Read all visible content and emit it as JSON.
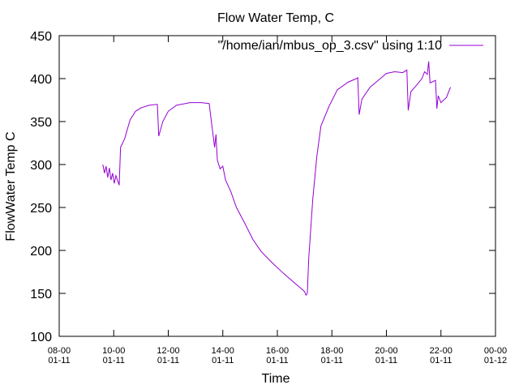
{
  "chart_data": {
    "type": "line",
    "title": "Flow Water Temp, C",
    "xlabel": "Time",
    "ylabel": "FlowWater Temp C",
    "x": [
      9.6,
      9.66,
      9.72,
      9.78,
      9.84,
      9.9,
      9.96,
      10.02,
      10.08,
      10.2,
      10.25,
      10.4,
      10.6,
      10.8,
      11.0,
      11.3,
      11.6,
      11.65,
      11.8,
      12.0,
      12.3,
      12.8,
      13.2,
      13.5,
      13.6,
      13.7,
      13.75,
      13.8,
      13.9,
      14.0,
      14.1,
      14.3,
      14.5,
      14.8,
      15.1,
      15.4,
      15.8,
      16.2,
      16.6,
      16.9,
      17.0,
      17.05,
      17.1,
      17.15,
      17.3,
      17.45,
      17.6,
      17.9,
      18.2,
      18.6,
      18.9,
      18.95,
      19.0,
      19.1,
      19.4,
      19.7,
      20.0,
      20.3,
      20.6,
      20.75,
      20.8,
      20.9,
      21.1,
      21.3,
      21.4,
      21.5,
      21.55,
      21.6,
      21.8,
      21.85,
      21.9,
      22.0,
      22.2,
      22.35
    ],
    "series": [
      {
        "name": "\"/home/ian/mbus_op_3.csv\" using 1:10",
        "color": "#9400d3",
        "values": [
          300,
          290,
          298,
          285,
          296,
          282,
          290,
          278,
          287,
          276,
          320,
          330,
          352,
          362,
          366,
          369,
          370,
          333,
          350,
          362,
          369,
          372,
          372,
          371,
          345,
          320,
          335,
          305,
          295,
          298,
          282,
          268,
          250,
          232,
          213,
          199,
          186,
          174,
          163,
          155,
          152,
          148,
          150,
          190,
          260,
          310,
          345,
          368,
          387,
          396,
          400,
          401,
          358,
          376,
          390,
          398,
          406,
          408,
          407,
          410,
          363,
          385,
          392,
          400,
          408,
          405,
          420,
          395,
          398,
          365,
          380,
          372,
          378,
          390
        ]
      }
    ],
    "xlim": [
      8,
      24
    ],
    "xticks": [
      {
        "value": 8,
        "label": "08-00\n01-11"
      },
      {
        "value": 10,
        "label": "10-00\n01-11"
      },
      {
        "value": 12,
        "label": "12-00\n01-11"
      },
      {
        "value": 14,
        "label": "14-00\n01-11"
      },
      {
        "value": 16,
        "label": "16-00\n01-11"
      },
      {
        "value": 18,
        "label": "18-00\n01-11"
      },
      {
        "value": 20,
        "label": "20-00\n01-11"
      },
      {
        "value": 22,
        "label": "22-00\n01-11"
      },
      {
        "value": 24,
        "label": "00-00\n01-12"
      }
    ],
    "ylim": [
      100,
      450
    ],
    "yticks": [
      100,
      150,
      200,
      250,
      300,
      350,
      400,
      450
    ],
    "grid": false,
    "legend": "top-right"
  }
}
